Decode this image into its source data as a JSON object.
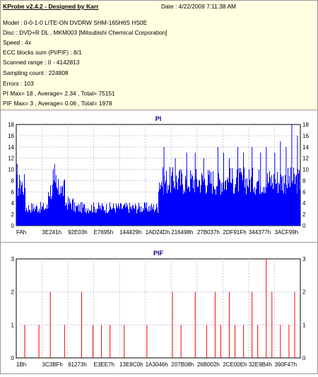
{
  "header": {
    "app_title": "KProbe v2.4.2 - Designed by Karr",
    "date": "Date : 4/22/2009 7:11:38 AM",
    "model": "Model : 0-0-1-0 LITE-ON DVDRW SHM-165H6S HS0E",
    "disc": "Disc : DVD+R DL , MKM003 [Mitsubishi Chemical Corporation]",
    "speed": "Speed : 4x",
    "ecc": "ECC blocks sum (PI/PIF) : 8/1",
    "scanned_range": "Scanned range : 0 - 4142813",
    "sampling_count": "Sampling count : 224808",
    "errors": "Errors : 103",
    "pi_summary": "PI Max= 18 , Average= 2.34 , Total= 75151",
    "pif_summary": "PIF Max= 3 , Average= 0.06 , Total= 1978"
  },
  "colors": {
    "background": "#ffffe1",
    "plot_background": "#ffffff",
    "grid": "#c8c8dc",
    "pi_bars": "#0000ff",
    "pif_bars": "#ff0000",
    "title_text": "#000080"
  },
  "chart_data": [
    {
      "type": "bar",
      "title": "PI",
      "series_color": "#0000ff",
      "ylim": [
        0,
        18
      ],
      "y_ticks": [
        0,
        2,
        4,
        6,
        8,
        10,
        12,
        14,
        16,
        18
      ],
      "x_tick_labels": [
        "FAh",
        "3E241h",
        "92E03h",
        "E7695h",
        "144429h",
        "1AD24Dh",
        "216498h",
        "27B037h",
        "2DF91Fh",
        "344377h",
        "3ACF99h"
      ],
      "grid": true,
      "segments": [
        {
          "x_from": 0.0,
          "x_to": 0.03,
          "level": 9
        },
        {
          "x_from": 0.03,
          "x_to": 0.11,
          "level": 4
        },
        {
          "x_from": 0.11,
          "x_to": 0.17,
          "level": 8
        },
        {
          "x_from": 0.17,
          "x_to": 0.2,
          "level": 5
        },
        {
          "x_from": 0.2,
          "x_to": 0.5,
          "level": 4
        },
        {
          "x_from": 0.5,
          "x_to": 1.0,
          "level": 10
        }
      ],
      "peaks": [
        {
          "x": 0.003,
          "value": 11
        },
        {
          "x": 0.015,
          "value": 8
        },
        {
          "x": 0.13,
          "value": 10
        },
        {
          "x": 0.135,
          "value": 11
        },
        {
          "x": 0.14,
          "value": 9
        },
        {
          "x": 0.155,
          "value": 7
        },
        {
          "x": 0.52,
          "value": 14
        },
        {
          "x": 0.56,
          "value": 12
        },
        {
          "x": 0.6,
          "value": 13
        },
        {
          "x": 0.63,
          "value": 13
        },
        {
          "x": 0.66,
          "value": 12
        },
        {
          "x": 0.71,
          "value": 14
        },
        {
          "x": 0.73,
          "value": 13
        },
        {
          "x": 0.75,
          "value": 12
        },
        {
          "x": 0.78,
          "value": 14
        },
        {
          "x": 0.8,
          "value": 13
        },
        {
          "x": 0.83,
          "value": 14
        },
        {
          "x": 0.86,
          "value": 13
        },
        {
          "x": 0.88,
          "value": 14
        },
        {
          "x": 0.91,
          "value": 13
        },
        {
          "x": 0.93,
          "value": 15
        },
        {
          "x": 0.95,
          "value": 14
        },
        {
          "x": 0.97,
          "value": 18
        },
        {
          "x": 0.99,
          "value": 16
        }
      ]
    },
    {
      "type": "bar",
      "title": "PIF",
      "series_color": "#ff0000",
      "ylim": [
        0,
        3
      ],
      "y_ticks": [
        0,
        1,
        2,
        3
      ],
      "x_tick_labels": [
        "1Bh",
        "3C3BFh",
        "91273h",
        "E3EE7h",
        "13E8C0h",
        "1A3046h",
        "207B08h",
        "26B002h",
        "2CE00Eh",
        "32E9B4h",
        "390F47h"
      ],
      "grid": true,
      "peaks": [
        {
          "x": 0.03,
          "value": 1
        },
        {
          "x": 0.08,
          "value": 1
        },
        {
          "x": 0.12,
          "value": 2
        },
        {
          "x": 0.17,
          "value": 1
        },
        {
          "x": 0.23,
          "value": 2
        },
        {
          "x": 0.27,
          "value": 1
        },
        {
          "x": 0.3,
          "value": 1
        },
        {
          "x": 0.33,
          "value": 1
        },
        {
          "x": 0.38,
          "value": 1
        },
        {
          "x": 0.46,
          "value": 1
        },
        {
          "x": 0.55,
          "value": 2
        },
        {
          "x": 0.58,
          "value": 1
        },
        {
          "x": 0.63,
          "value": 2
        },
        {
          "x": 0.67,
          "value": 1
        },
        {
          "x": 0.7,
          "value": 2
        },
        {
          "x": 0.72,
          "value": 1
        },
        {
          "x": 0.75,
          "value": 2
        },
        {
          "x": 0.77,
          "value": 1
        },
        {
          "x": 0.8,
          "value": 1
        },
        {
          "x": 0.83,
          "value": 2
        },
        {
          "x": 0.85,
          "value": 1
        },
        {
          "x": 0.88,
          "value": 3
        },
        {
          "x": 0.9,
          "value": 2
        },
        {
          "x": 0.93,
          "value": 1
        },
        {
          "x": 0.96,
          "value": 1
        },
        {
          "x": 0.98,
          "value": 2
        }
      ]
    }
  ]
}
